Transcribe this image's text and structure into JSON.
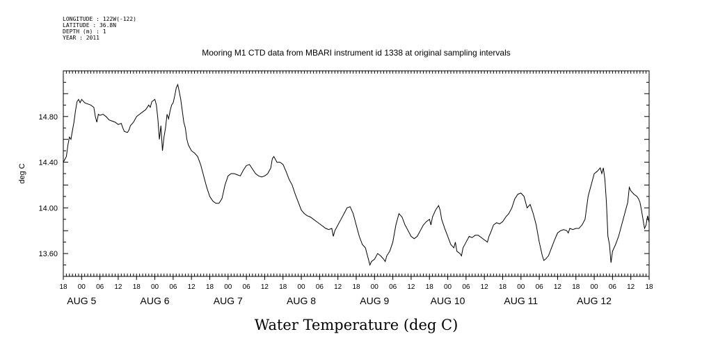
{
  "metadata": [
    "LONGITUDE : 122W(-122)",
    "LATITUDE : 36.8N",
    "DEPTH (m) : 1",
    "YEAR : 2011"
  ],
  "chart_data": {
    "type": "line",
    "title": "Mooring M1 CTD data from MBARI instrument id 1338 at original sampling intervals",
    "xlabel": "Water Temperature (deg C)",
    "ylabel": "deg C",
    "ylim": [
      13.4,
      15.2
    ],
    "yticks": [
      "14.80",
      "14.40",
      "14.00",
      "13.60"
    ],
    "x_hour_labels": [
      "18",
      "00",
      "06",
      "12",
      "18",
      "00",
      "06",
      "12",
      "18",
      "00",
      "06",
      "12",
      "18",
      "00",
      "06",
      "12",
      "18",
      "00",
      "06",
      "12",
      "18",
      "00",
      "06",
      "12",
      "18",
      "00",
      "06",
      "12",
      "18",
      "00",
      "06",
      "12",
      "18"
    ],
    "x_day_labels": [
      "AUG  5",
      "AUG  6",
      "AUG  7",
      "AUG  8",
      "AUG  9",
      "AUG 10",
      "AUG 11",
      "AUG 12"
    ],
    "x_unit": "hours since 2011-08-04 18:00",
    "xlim": [
      0,
      192
    ],
    "grid": false,
    "series": [
      {
        "color": "#000000",
        "points": [
          [
            0,
            14.4
          ],
          [
            1,
            14.45
          ],
          [
            1.5,
            14.55
          ],
          [
            2,
            14.62
          ],
          [
            2.5,
            14.6
          ],
          [
            3,
            14.68
          ],
          [
            3.5,
            14.75
          ],
          [
            4,
            14.85
          ],
          [
            4.5,
            14.93
          ],
          [
            5,
            14.95
          ],
          [
            5.5,
            14.92
          ],
          [
            6,
            14.95
          ],
          [
            7,
            14.92
          ],
          [
            8,
            14.91
          ],
          [
            9,
            14.9
          ],
          [
            10,
            14.88
          ],
          [
            10.5,
            14.8
          ],
          [
            11,
            14.75
          ],
          [
            11.5,
            14.82
          ],
          [
            12,
            14.81
          ],
          [
            13,
            14.82
          ],
          [
            14,
            14.8
          ],
          [
            15,
            14.77
          ],
          [
            16,
            14.76
          ],
          [
            17,
            14.75
          ],
          [
            18,
            14.73
          ],
          [
            19,
            14.74
          ],
          [
            19.5,
            14.7
          ],
          [
            20,
            14.67
          ],
          [
            21,
            14.66
          ],
          [
            21.5,
            14.68
          ],
          [
            22,
            14.72
          ],
          [
            23,
            14.75
          ],
          [
            24,
            14.8
          ],
          [
            25,
            14.82
          ],
          [
            26,
            14.84
          ],
          [
            27,
            14.86
          ],
          [
            28,
            14.9
          ],
          [
            28.5,
            14.88
          ],
          [
            29,
            14.93
          ],
          [
            30,
            14.95
          ],
          [
            30.5,
            14.9
          ],
          [
            31,
            14.78
          ],
          [
            31.5,
            14.6
          ],
          [
            32,
            14.72
          ],
          [
            32.5,
            14.5
          ],
          [
            33,
            14.62
          ],
          [
            33.5,
            14.7
          ],
          [
            34,
            14.82
          ],
          [
            34.5,
            14.78
          ],
          [
            35,
            14.85
          ],
          [
            35.5,
            14.9
          ],
          [
            36,
            14.92
          ],
          [
            36.5,
            14.98
          ],
          [
            37,
            15.05
          ],
          [
            37.5,
            15.08
          ],
          [
            38,
            15.02
          ],
          [
            38.5,
            14.95
          ],
          [
            39,
            14.85
          ],
          [
            39.5,
            14.75
          ],
          [
            40,
            14.7
          ],
          [
            40.5,
            14.6
          ],
          [
            41,
            14.55
          ],
          [
            42,
            14.5
          ],
          [
            43,
            14.48
          ],
          [
            44,
            14.45
          ],
          [
            45,
            14.38
          ],
          [
            46,
            14.28
          ],
          [
            47,
            14.18
          ],
          [
            48,
            14.1
          ],
          [
            49,
            14.06
          ],
          [
            50,
            14.04
          ],
          [
            51,
            14.04
          ],
          [
            52,
            14.08
          ],
          [
            53,
            14.2
          ],
          [
            54,
            14.28
          ],
          [
            55,
            14.3
          ],
          [
            56,
            14.3
          ],
          [
            57,
            14.29
          ],
          [
            58,
            14.28
          ],
          [
            59,
            14.33
          ],
          [
            60,
            14.37
          ],
          [
            61,
            14.38
          ],
          [
            62,
            14.34
          ],
          [
            63,
            14.3
          ],
          [
            64,
            14.28
          ],
          [
            65,
            14.27
          ],
          [
            66,
            14.28
          ],
          [
            67,
            14.3
          ],
          [
            68,
            14.35
          ],
          [
            68.5,
            14.43
          ],
          [
            69,
            14.45
          ],
          [
            70,
            14.4
          ],
          [
            71,
            14.4
          ],
          [
            72,
            14.38
          ],
          [
            73,
            14.32
          ],
          [
            74,
            14.25
          ],
          [
            75,
            14.2
          ],
          [
            76,
            14.12
          ],
          [
            77,
            14.05
          ],
          [
            78,
            13.98
          ],
          [
            79,
            13.95
          ],
          [
            80,
            13.93
          ],
          [
            81,
            13.92
          ],
          [
            82,
            13.9
          ],
          [
            83,
            13.88
          ],
          [
            84,
            13.86
          ],
          [
            85,
            13.84
          ],
          [
            86,
            13.82
          ],
          [
            87,
            13.81
          ],
          [
            88,
            13.82
          ],
          [
            88.5,
            13.75
          ],
          [
            89,
            13.8
          ],
          [
            90,
            13.85
          ],
          [
            91,
            13.9
          ],
          [
            92,
            13.95
          ],
          [
            93,
            14.0
          ],
          [
            94,
            14.01
          ],
          [
            95,
            13.95
          ],
          [
            96,
            13.85
          ],
          [
            97,
            13.75
          ],
          [
            98,
            13.68
          ],
          [
            99,
            13.65
          ],
          [
            100,
            13.55
          ],
          [
            100.5,
            13.5
          ],
          [
            101,
            13.53
          ],
          [
            102,
            13.55
          ],
          [
            103,
            13.6
          ],
          [
            104,
            13.58
          ],
          [
            105,
            13.55
          ],
          [
            105.5,
            13.53
          ],
          [
            106,
            13.58
          ],
          [
            107,
            13.62
          ],
          [
            108,
            13.7
          ],
          [
            109,
            13.85
          ],
          [
            110,
            13.95
          ],
          [
            111,
            13.92
          ],
          [
            112,
            13.85
          ],
          [
            113,
            13.8
          ],
          [
            114,
            13.75
          ],
          [
            115,
            13.73
          ],
          [
            116,
            13.75
          ],
          [
            117,
            13.8
          ],
          [
            118,
            13.85
          ],
          [
            119,
            13.88
          ],
          [
            120,
            13.9
          ],
          [
            120.5,
            13.85
          ],
          [
            121,
            13.92
          ],
          [
            122,
            13.98
          ],
          [
            123,
            14.02
          ],
          [
            123.5,
            13.98
          ],
          [
            124,
            13.9
          ],
          [
            125,
            13.82
          ],
          [
            126,
            13.75
          ],
          [
            127,
            13.68
          ],
          [
            128,
            13.65
          ],
          [
            128.5,
            13.7
          ],
          [
            129,
            13.62
          ],
          [
            130,
            13.6
          ],
          [
            130.5,
            13.58
          ],
          [
            131,
            13.65
          ],
          [
            132,
            13.7
          ],
          [
            133,
            13.75
          ],
          [
            134,
            13.74
          ],
          [
            135,
            13.76
          ],
          [
            136,
            13.76
          ],
          [
            137,
            13.74
          ],
          [
            138,
            13.72
          ],
          [
            139,
            13.7
          ],
          [
            139.5,
            13.75
          ],
          [
            140,
            13.78
          ],
          [
            141,
            13.85
          ],
          [
            142,
            13.87
          ],
          [
            143,
            13.86
          ],
          [
            144,
            13.88
          ],
          [
            145,
            13.92
          ],
          [
            146,
            13.95
          ],
          [
            147,
            14.0
          ],
          [
            148,
            14.08
          ],
          [
            149,
            14.12
          ],
          [
            150,
            14.13
          ],
          [
            151,
            14.1
          ],
          [
            152,
            14.0
          ],
          [
            153,
            14.03
          ],
          [
            154,
            13.95
          ],
          [
            155,
            13.85
          ],
          [
            156,
            13.7
          ],
          [
            157,
            13.58
          ],
          [
            157.5,
            13.54
          ],
          [
            158,
            13.55
          ],
          [
            159,
            13.58
          ],
          [
            160,
            13.65
          ],
          [
            161,
            13.72
          ],
          [
            162,
            13.78
          ],
          [
            163,
            13.8
          ],
          [
            164,
            13.81
          ],
          [
            165,
            13.8
          ],
          [
            165.5,
            13.78
          ],
          [
            166,
            13.82
          ],
          [
            167,
            13.81
          ],
          [
            168,
            13.82
          ],
          [
            169,
            13.82
          ],
          [
            170,
            13.85
          ],
          [
            171,
            13.9
          ],
          [
            172,
            14.1
          ],
          [
            173,
            14.2
          ],
          [
            174,
            14.3
          ],
          [
            175,
            14.32
          ],
          [
            176,
            14.35
          ],
          [
            176.5,
            14.3
          ],
          [
            177,
            14.35
          ],
          [
            177.5,
            14.25
          ],
          [
            178,
            14.05
          ],
          [
            178.5,
            13.75
          ],
          [
            179,
            13.68
          ],
          [
            179.5,
            13.52
          ],
          [
            180,
            13.62
          ],
          [
            181,
            13.68
          ],
          [
            182,
            13.75
          ],
          [
            183,
            13.85
          ],
          [
            184,
            13.95
          ],
          [
            185,
            14.05
          ],
          [
            185.5,
            14.18
          ],
          [
            186,
            14.15
          ],
          [
            187,
            14.12
          ],
          [
            188,
            14.1
          ],
          [
            188.5,
            14.08
          ],
          [
            189,
            14.05
          ],
          [
            189.5,
            13.98
          ],
          [
            190,
            13.9
          ],
          [
            190.5,
            13.82
          ],
          [
            191,
            13.85
          ],
          [
            191.5,
            13.93
          ],
          [
            192,
            13.87
          ]
        ]
      }
    ]
  }
}
